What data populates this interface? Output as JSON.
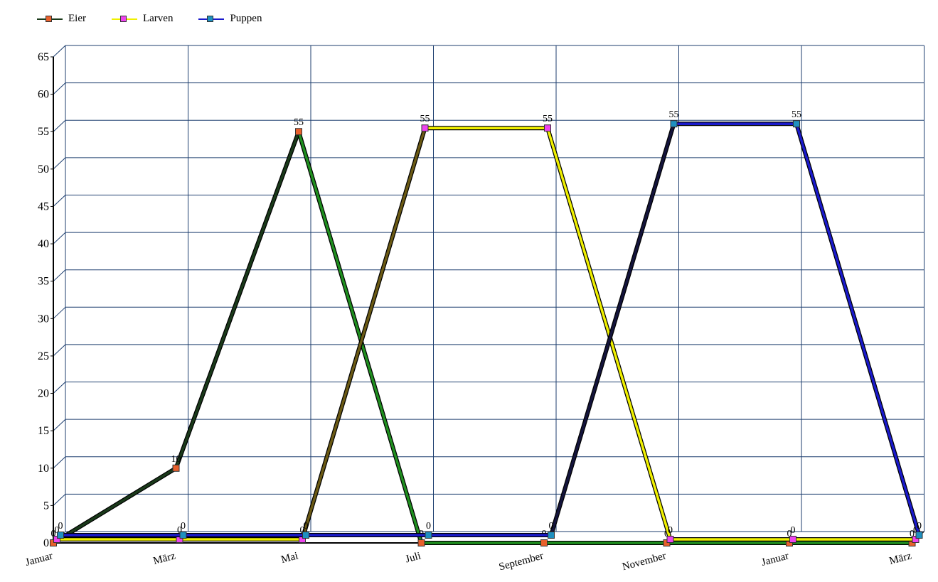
{
  "chart_data": {
    "type": "line",
    "categories": [
      "Januar",
      "März",
      "Mai",
      "Juli",
      "September",
      "November",
      "Januar",
      "März"
    ],
    "ylim": [
      0,
      65
    ],
    "yticks": [
      0,
      5,
      10,
      15,
      20,
      25,
      30,
      35,
      40,
      45,
      50,
      55,
      60,
      65
    ],
    "grid": true,
    "legend_position": "top-left",
    "series": [
      {
        "name": "Eier",
        "line_color": "#1a3a1a",
        "line_color_emph": "#1f8f1f",
        "marker_color": "#e8602c",
        "values": [
          0,
          10,
          55,
          0,
          0,
          0,
          0,
          0
        ]
      },
      {
        "name": "Larven",
        "line_color": "#6b5a14",
        "line_color_emph": "#f0f000",
        "marker_color": "#ee44ee",
        "values": [
          0,
          0,
          0,
          55,
          55,
          0,
          0,
          0
        ]
      },
      {
        "name": "Puppen",
        "line_color": "#14143c",
        "line_color_emph": "#1a1acc",
        "marker_color": "#1e90c0",
        "values": [
          0,
          0,
          0,
          0,
          0,
          55,
          55,
          0
        ]
      }
    ]
  }
}
